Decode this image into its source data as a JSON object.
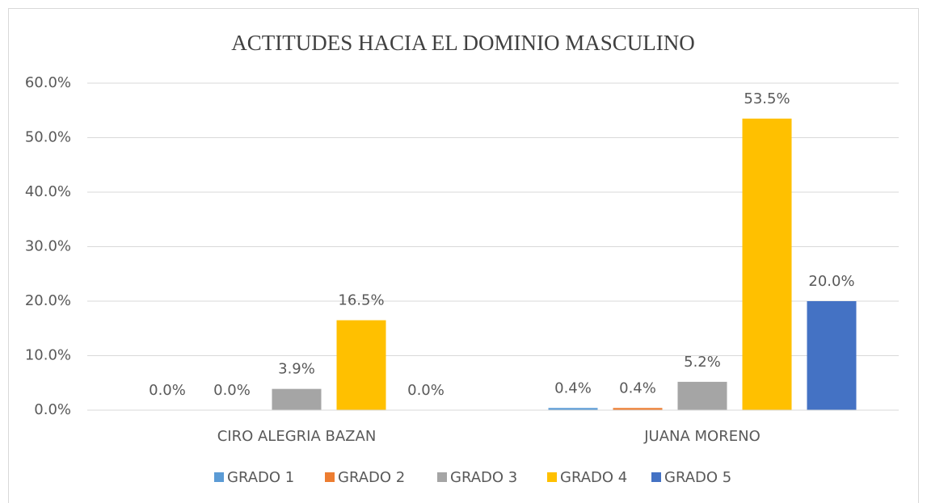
{
  "chart_data": {
    "type": "bar",
    "title": "ACTITUDES HACIA EL DOMINIO MASCULINO",
    "categories": [
      "CIRO ALEGRIA BAZAN",
      "JUANA MORENO"
    ],
    "series": [
      {
        "name": "GRADO 1",
        "color": "#5B9BD5",
        "values": [
          0,
          0.4
        ],
        "value_labels": [
          "0.0%",
          "0.4%"
        ]
      },
      {
        "name": "GRADO 2",
        "color": "#ED7D31",
        "values": [
          0,
          0.4
        ],
        "value_labels": [
          "0.0%",
          "0.4%"
        ]
      },
      {
        "name": "GRADO 3",
        "color": "#A5A5A5",
        "values": [
          3.9,
          5.2
        ],
        "value_labels": [
          "3.9%",
          "5.2%"
        ]
      },
      {
        "name": "GRADO 4",
        "color": "#FFC000",
        "values": [
          16.5,
          53.5
        ],
        "value_labels": [
          "16.5%",
          "53.5%"
        ]
      },
      {
        "name": "GRADO 5",
        "color": "#4472C4",
        "values": [
          0,
          20.0
        ],
        "value_labels": [
          "0.0%",
          "20.0%"
        ]
      }
    ],
    "ylim": [
      0,
      60
    ],
    "yticks": [
      {
        "value": 0,
        "label": "0.0%"
      },
      {
        "value": 10,
        "label": "10.0%"
      },
      {
        "value": 20,
        "label": "20.0%"
      },
      {
        "value": 30,
        "label": "30.0%"
      },
      {
        "value": 40,
        "label": "40.0%"
      },
      {
        "value": 50,
        "label": "50.0%"
      },
      {
        "value": 60,
        "label": "60.0%"
      }
    ],
    "grid": true,
    "legend": "bottom"
  }
}
